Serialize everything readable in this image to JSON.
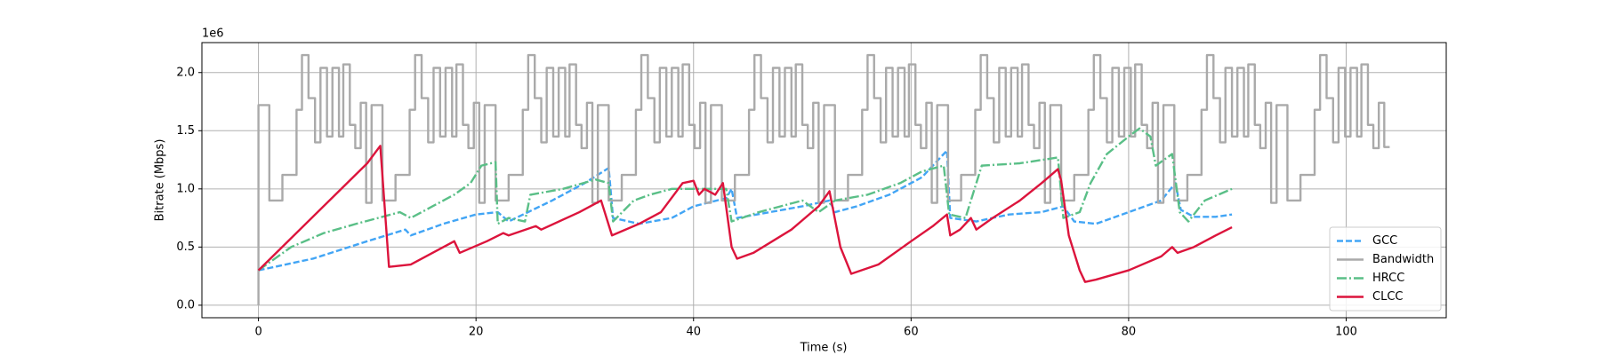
{
  "chart_data": {
    "type": "line",
    "x_label": "Time (s)",
    "y_label": "Bitrate (Mbps)",
    "y_offset_label": "1e6",
    "xlim": [
      -5.2,
      109.2
    ],
    "ylim": [
      -0.1075,
      2.2575
    ],
    "xticks": [
      0,
      20,
      40,
      60,
      80,
      100
    ],
    "yticks": [
      {
        "value": 0,
        "label": "0.0"
      },
      0.5,
      {
        "value": 1,
        "label": "1.0"
      },
      1.5,
      {
        "value": 2,
        "label": "2.0"
      }
    ],
    "grid": true,
    "legend": "lower right",
    "series": [
      {
        "name": "GCC",
        "color": "#42a5f5",
        "linestyle": "dashed",
        "x": [
          0,
          5,
          10,
          13.5,
          14,
          17,
          20,
          22,
          23,
          27,
          30,
          32.2,
          32.6,
          35,
          38,
          40,
          43,
          43.5,
          44,
          47,
          50,
          52.5,
          53,
          55,
          58,
          61,
          63.3,
          63.6,
          66,
          69,
          72,
          74,
          75,
          77,
          80,
          83,
          84.3,
          84.8,
          86,
          88,
          89.5
        ],
        "values": [
          0.3,
          0.4,
          0.55,
          0.65,
          0.6,
          0.7,
          0.78,
          0.8,
          0.72,
          0.9,
          1.05,
          1.18,
          0.75,
          0.7,
          0.75,
          0.85,
          0.92,
          1.0,
          0.75,
          0.8,
          0.85,
          0.9,
          0.8,
          0.85,
          0.95,
          1.1,
          1.33,
          0.75,
          0.72,
          0.78,
          0.8,
          0.85,
          0.72,
          0.7,
          0.8,
          0.9,
          1.05,
          0.82,
          0.76,
          0.76,
          0.78
        ]
      },
      {
        "name": "Bandwidth",
        "color": "#aaaaaa",
        "linestyle": "solid",
        "drawstyle": "steps-post",
        "x": [
          0,
          0,
          1,
          2.2,
          3.5,
          4,
          4.6,
          5.2,
          5.7,
          6.3,
          6.8,
          7.4,
          7.8,
          8.4,
          8.9,
          9.4,
          9.9,
          10.4,
          11.4,
          12.6,
          13.9,
          14.4,
          15,
          15.6,
          16.1,
          16.7,
          17.2,
          17.8,
          18.2,
          18.8,
          19.3,
          19.8,
          20.3,
          20.8,
          21.8,
          23,
          24.3,
          24.8,
          25.4,
          26,
          26.5,
          27.1,
          27.6,
          28.2,
          28.6,
          29.2,
          29.7,
          30.2,
          30.7,
          31.2,
          32.2,
          33.4,
          34.7,
          35.2,
          35.8,
          36.4,
          36.9,
          37.5,
          38,
          38.6,
          39,
          39.6,
          40.1,
          40.6,
          41.1,
          41.6,
          42.6,
          43.8,
          45.1,
          45.6,
          46.2,
          46.8,
          47.3,
          47.9,
          48.4,
          49,
          49.4,
          50,
          50.5,
          51,
          51.5,
          52,
          53,
          54.2,
          55.5,
          56,
          56.6,
          57.2,
          57.7,
          58.3,
          58.8,
          59.4,
          59.8,
          60.4,
          60.9,
          61.4,
          61.9,
          62.4,
          63.4,
          64.6,
          65.9,
          66.4,
          67,
          67.6,
          68.1,
          68.7,
          69.2,
          69.8,
          70.2,
          70.8,
          71.3,
          71.8,
          72.3,
          72.8,
          73.8,
          75,
          76.3,
          76.8,
          77.4,
          78,
          78.5,
          79.1,
          79.6,
          80.2,
          80.6,
          81.2,
          81.7,
          82.2,
          82.7,
          83.2,
          84.2,
          85.4,
          86.7,
          87.2,
          87.8,
          88.4,
          88.9,
          89.5,
          90,
          90.6,
          91,
          91.6,
          92.1,
          92.6,
          93.1,
          93.6,
          94.6,
          95.8,
          97.1,
          97.6,
          98.2,
          98.8,
          99.3,
          99.9,
          100.4,
          101,
          101.4,
          102,
          102.5,
          103,
          103.5,
          104
        ],
        "values": [
          0,
          1.72,
          0.9,
          1.12,
          1.68,
          2.15,
          1.78,
          1.4,
          2.04,
          1.45,
          2.04,
          1.45,
          2.07,
          1.55,
          1.35,
          1.74,
          0.88,
          1.72,
          0.9,
          1.12,
          1.68,
          2.15,
          1.78,
          1.4,
          2.04,
          1.45,
          2.04,
          1.45,
          2.07,
          1.55,
          1.35,
          1.74,
          0.88,
          1.72,
          0.9,
          1.12,
          1.68,
          2.15,
          1.78,
          1.4,
          2.04,
          1.45,
          2.04,
          1.45,
          2.07,
          1.55,
          1.35,
          1.74,
          0.88,
          1.72,
          0.9,
          1.12,
          1.68,
          2.15,
          1.78,
          1.4,
          2.04,
          1.45,
          2.04,
          1.45,
          2.07,
          1.55,
          1.35,
          1.74,
          0.88,
          1.72,
          0.9,
          1.12,
          1.68,
          2.15,
          1.78,
          1.4,
          2.04,
          1.45,
          2.04,
          1.45,
          2.07,
          1.55,
          1.35,
          1.74,
          0.88,
          1.72,
          0.9,
          1.12,
          1.68,
          2.15,
          1.78,
          1.4,
          2.04,
          1.45,
          2.04,
          1.45,
          2.07,
          1.55,
          1.35,
          1.74,
          0.88,
          1.72,
          0.9,
          1.12,
          1.68,
          2.15,
          1.78,
          1.4,
          2.04,
          1.45,
          2.04,
          1.45,
          2.07,
          1.55,
          1.35,
          1.74,
          0.88,
          1.72,
          0.9,
          1.12,
          1.68,
          2.15,
          1.78,
          1.4,
          2.04,
          1.45,
          2.04,
          1.45,
          2.07,
          1.55,
          1.35,
          1.74,
          0.88,
          1.72,
          0.9,
          1.12,
          1.68,
          2.15,
          1.78,
          1.4,
          2.04,
          1.45,
          2.04,
          1.45,
          2.07,
          1.55,
          1.35,
          1.74,
          0.88,
          1.72,
          0.9,
          1.12,
          1.68,
          2.15,
          1.78,
          1.4,
          2.04,
          1.45,
          2.04,
          1.45,
          2.07,
          1.55,
          1.35,
          1.74,
          1.36,
          1.36
        ]
      },
      {
        "name": "HRCC",
        "color": "#5abf87",
        "linestyle": "dashdot",
        "x": [
          0,
          3,
          6,
          9,
          11,
          13,
          14,
          16,
          18,
          19.5,
          20.5,
          21.8,
          22,
          23,
          24.5,
          25,
          28,
          31,
          32.2,
          32.6,
          34.5,
          36,
          38,
          43,
          43.5,
          46,
          48,
          50,
          51.5,
          53,
          56,
          59,
          61,
          63,
          63.5,
          65,
          65.5,
          66.5,
          70,
          73.5,
          74,
          75.5,
          76.5,
          78,
          80,
          81,
          82,
          82.5,
          84,
          84.7,
          85.5,
          87,
          89.5
        ],
        "values": [
          0.3,
          0.5,
          0.62,
          0.7,
          0.75,
          0.8,
          0.75,
          0.85,
          0.95,
          1.05,
          1.2,
          1.23,
          0.7,
          0.75,
          0.72,
          0.95,
          1.0,
          1.08,
          1.05,
          0.72,
          0.9,
          0.95,
          1.0,
          1.0,
          0.72,
          0.8,
          0.85,
          0.9,
          0.8,
          0.9,
          0.95,
          1.05,
          1.15,
          1.2,
          0.78,
          0.75,
          0.9,
          1.2,
          1.22,
          1.27,
          0.75,
          0.8,
          1.05,
          1.3,
          1.45,
          1.52,
          1.45,
          1.2,
          1.3,
          0.8,
          0.72,
          0.9,
          1.0
        ]
      },
      {
        "name": "CLCC",
        "color": "#dc143c",
        "linestyle": "solid",
        "x": [
          0,
          10,
          11.2,
          12,
          14,
          18,
          18.5,
          21,
          22.5,
          23,
          25.5,
          26,
          29.5,
          31.5,
          32.5,
          35,
          37,
          39,
          40,
          40.5,
          41,
          42,
          42.7,
          43.5,
          44,
          45.5,
          49,
          51.5,
          52.5,
          53.5,
          54.5,
          57,
          60,
          62,
          63.3,
          63.6,
          64.5,
          65.5,
          66,
          67.5,
          70,
          72,
          73.5,
          73.8,
          74.5,
          75.5,
          76,
          77,
          80,
          83,
          84,
          84.5,
          86,
          88,
          89.5
        ],
        "values": [
          0.3,
          1.22,
          1.37,
          0.33,
          0.35,
          0.55,
          0.45,
          0.55,
          0.62,
          0.6,
          0.68,
          0.65,
          0.8,
          0.9,
          0.6,
          0.7,
          0.8,
          1.05,
          1.07,
          0.95,
          1.0,
          0.95,
          1.05,
          0.5,
          0.4,
          0.45,
          0.65,
          0.85,
          0.98,
          0.5,
          0.27,
          0.35,
          0.55,
          0.68,
          0.78,
          0.6,
          0.65,
          0.75,
          0.65,
          0.75,
          0.9,
          1.05,
          1.17,
          1.07,
          0.6,
          0.3,
          0.2,
          0.22,
          0.3,
          0.42,
          0.5,
          0.45,
          0.5,
          0.6,
          0.67
        ]
      }
    ]
  }
}
